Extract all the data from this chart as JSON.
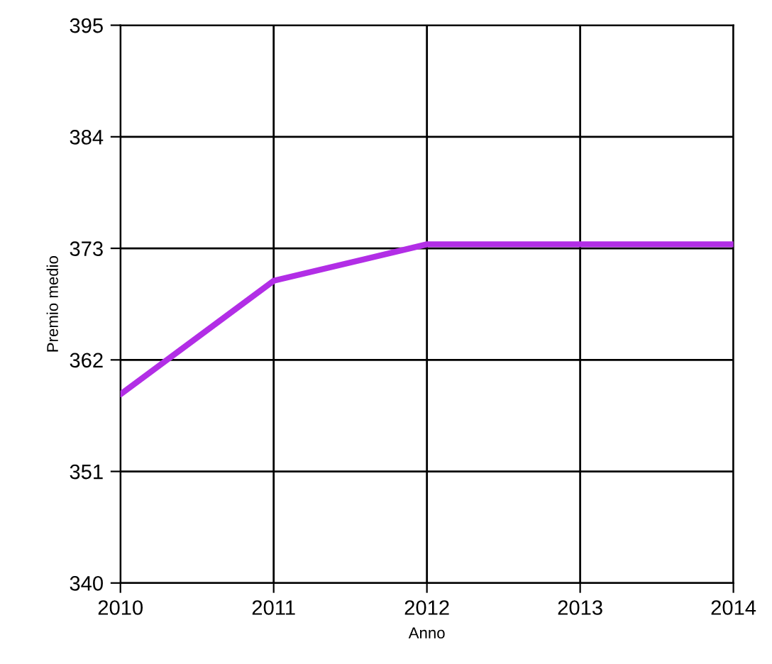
{
  "chart_data": {
    "type": "line",
    "xlabel": "Anno",
    "ylabel": "Premio medio",
    "x": [
      2010,
      2011,
      2012,
      2013,
      2014
    ],
    "series": [
      {
        "color": "#b22ee6",
        "values": [
          358.6,
          369.8,
          373.4,
          373.4,
          373.4
        ]
      }
    ],
    "xlim": [
      2010,
      2014
    ],
    "xticks": [
      2010,
      2011,
      2012,
      2013,
      2014
    ],
    "ylim": [
      340,
      395
    ],
    "yticks": [
      340,
      351,
      362,
      373,
      384,
      395
    ],
    "grid": true,
    "marker": "none",
    "line_style": "solid"
  }
}
